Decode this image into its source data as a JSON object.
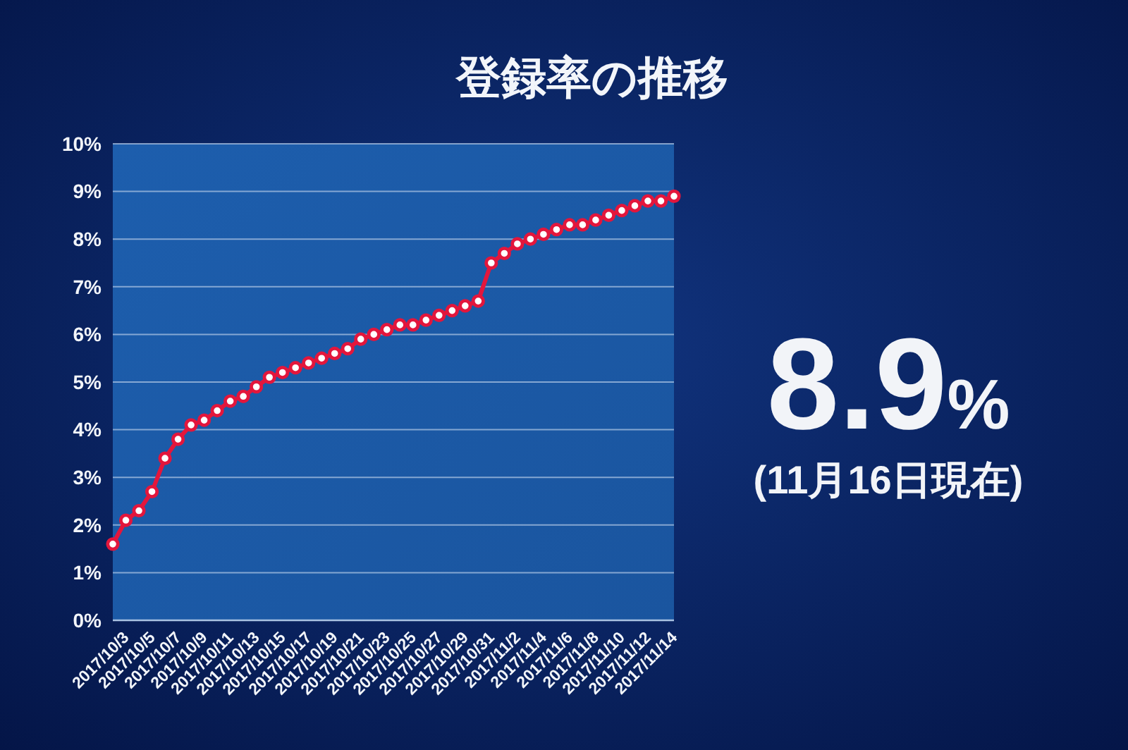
{
  "chart_data": {
    "type": "line",
    "title": "登録率の推移",
    "categories": [
      null,
      "2017/10/3",
      null,
      "2017/10/5",
      null,
      "2017/10/7",
      null,
      "2017/10/9",
      null,
      "2017/10/11",
      null,
      "2017/10/13",
      null,
      "2017/10/15",
      null,
      "2017/10/17",
      null,
      "2017/10/19",
      null,
      "2017/10/21",
      null,
      "2017/10/23",
      null,
      "2017/10/25",
      null,
      "2017/10/27",
      null,
      "2017/10/29",
      null,
      "2017/10/31",
      null,
      "2017/11/2",
      null,
      "2017/11/4",
      null,
      "2017/11/6",
      null,
      "2017/11/8",
      null,
      "2017/11/10",
      null,
      "2017/11/12",
      null,
      "2017/11/14"
    ],
    "series": [
      {
        "color": "#e3163c",
        "values": [
          1.6,
          2.1,
          2.3,
          2.7,
          3.4,
          3.8,
          4.1,
          4.2,
          4.4,
          4.6,
          4.7,
          4.9,
          5.1,
          5.2,
          5.3,
          5.4,
          5.5,
          5.6,
          5.7,
          5.9,
          6.0,
          6.1,
          6.2,
          6.2,
          6.3,
          6.4,
          6.5,
          6.6,
          6.7,
          7.5,
          7.7,
          7.9,
          8.0,
          8.1,
          8.2,
          8.3,
          8.3,
          8.4,
          8.5,
          8.6,
          8.7,
          8.8,
          8.8,
          8.9
        ]
      }
    ],
    "ylim": [
      0,
      10
    ],
    "yticks": [
      {
        "value": 0,
        "label": "0%"
      },
      {
        "value": 1,
        "label": "1%"
      },
      {
        "value": 2,
        "label": "2%"
      },
      {
        "value": 3,
        "label": "3%"
      },
      {
        "value": 4,
        "label": "4%"
      },
      {
        "value": 5,
        "label": "5%"
      },
      {
        "value": 6,
        "label": "6%"
      },
      {
        "value": 7,
        "label": "7%"
      },
      {
        "value": 8,
        "label": "8%"
      },
      {
        "value": 9,
        "label": "9%"
      },
      {
        "value": 10,
        "label": "10%"
      }
    ],
    "grid": "y",
    "marker": "circle",
    "line_style": "solid",
    "annotations": [
      "8.9%",
      "(11月16日現在)"
    ]
  }
}
